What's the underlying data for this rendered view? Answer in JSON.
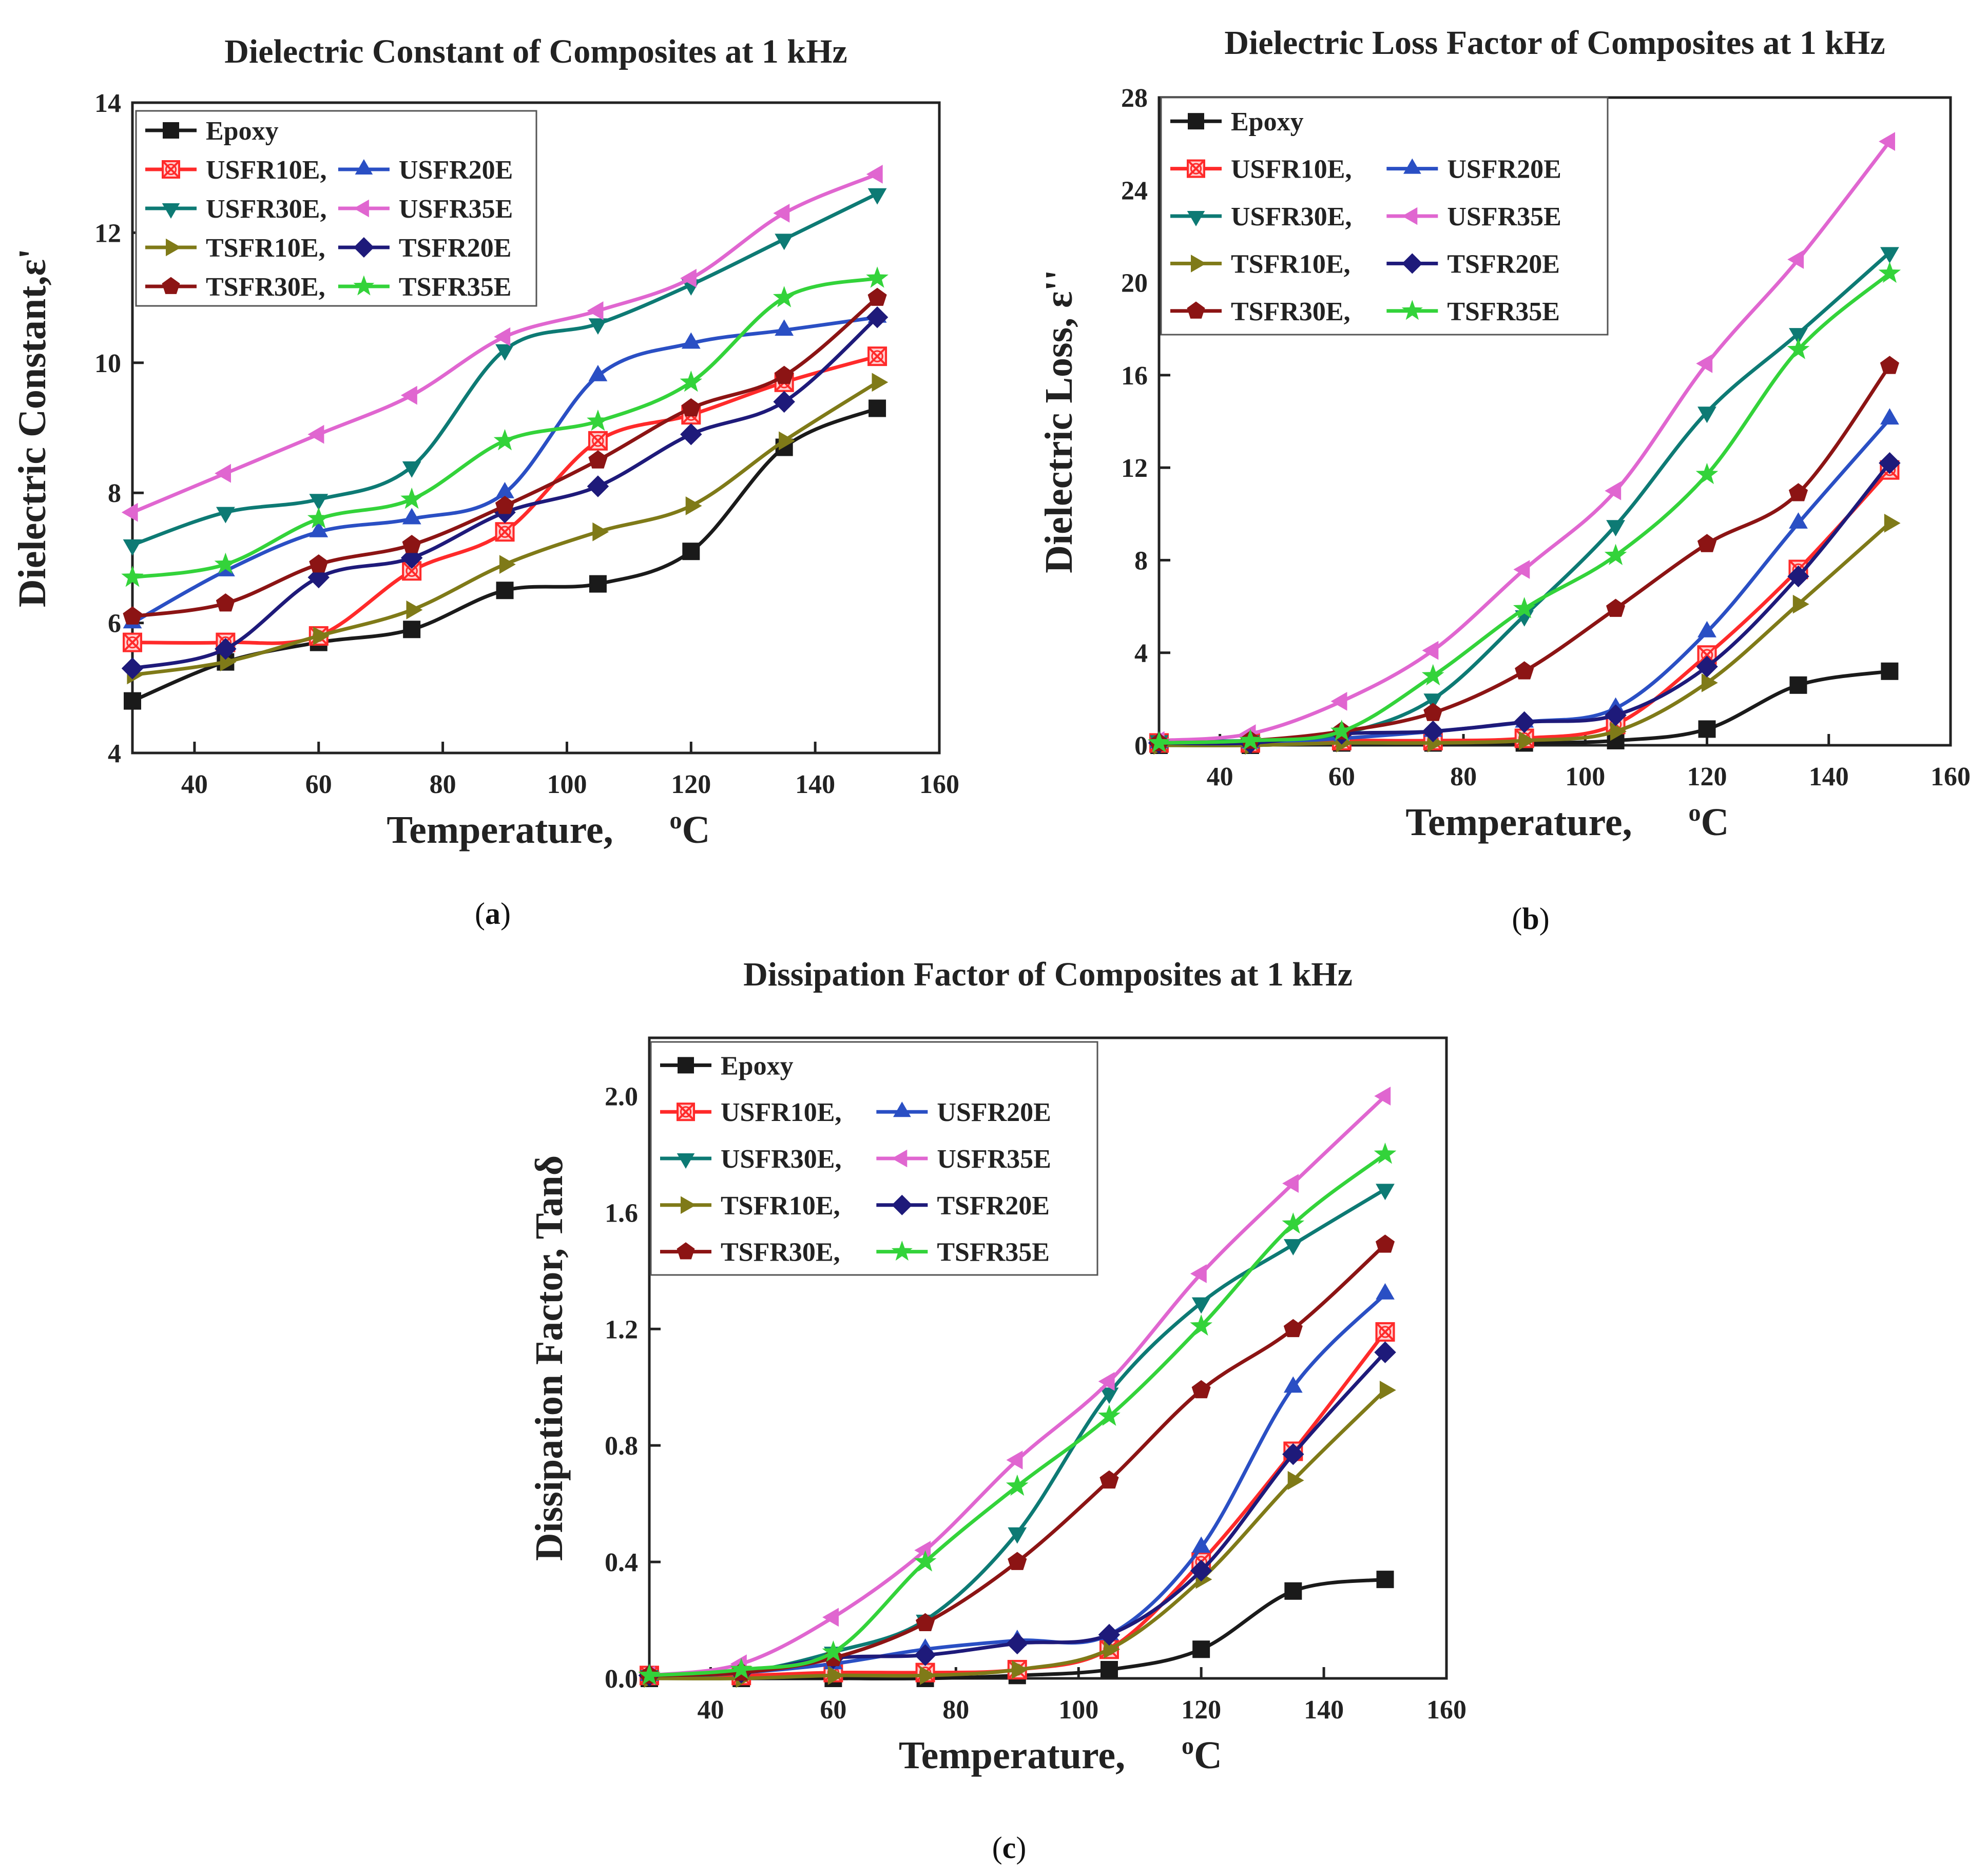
{
  "colors": {
    "Epoxy": "#1a1a1a",
    "USFR10E": "#ff2a2a",
    "USFR20E": "#2a4fc4",
    "USFR30E": "#0d7a74",
    "USFR35E": "#e066d0",
    "TSFR10E": "#7f7a18",
    "TSFR20E": "#1e1a7a",
    "TSFR30E": "#8c1414",
    "TSFR35E": "#33d33a"
  },
  "legend_items": [
    {
      "key": "Epoxy",
      "label": "Epoxy",
      "marker": "square"
    },
    {
      "key": "USFR10E",
      "label": "USFR10E,",
      "marker": "xsquare"
    },
    {
      "key": "USFR20E",
      "label": "USFR20E",
      "marker": "triangle-up"
    },
    {
      "key": "USFR30E",
      "label": "USFR30E,",
      "marker": "triangle-down"
    },
    {
      "key": "USFR35E",
      "label": "USFR35E",
      "marker": "triangle-left"
    },
    {
      "key": "TSFR10E",
      "label": "TSFR10E,",
      "marker": "triangle-right"
    },
    {
      "key": "TSFR20E",
      "label": "TSFR20E",
      "marker": "diamond"
    },
    {
      "key": "TSFR30E",
      "label": "TSFR30E,",
      "marker": "pentagon"
    },
    {
      "key": "TSFR35E",
      "label": "TSFR35E",
      "marker": "star"
    }
  ],
  "chart_data": [
    {
      "id": "a",
      "panel_label": "a",
      "type": "line",
      "title": "Dielectric Constant of  Composites at 1 kHz",
      "xlabel": "Temperature,",
      "xlabel_unit": "oC",
      "ylabel": "Dielectric Constant,ε'",
      "x": [
        30,
        45,
        60,
        75,
        90,
        105,
        120,
        135,
        150
      ],
      "xlim": [
        30,
        160
      ],
      "ylim": [
        4,
        14
      ],
      "xticks": [
        40,
        60,
        80,
        100,
        120,
        140,
        160
      ],
      "yticks": [
        4,
        6,
        8,
        10,
        12,
        14
      ],
      "ytick_labels": [
        "4",
        "6",
        "8",
        "10",
        "12",
        "14"
      ],
      "grid": false,
      "legend_position": "top-left",
      "series": [
        {
          "name": "Epoxy",
          "values": [
            4.8,
            5.4,
            5.7,
            5.9,
            6.5,
            6.6,
            7.1,
            8.7,
            9.3
          ]
        },
        {
          "name": "USFR10E",
          "values": [
            5.7,
            5.7,
            5.8,
            6.8,
            7.4,
            8.8,
            9.2,
            9.7,
            10.1
          ]
        },
        {
          "name": "USFR20E",
          "values": [
            6.0,
            6.8,
            7.4,
            7.6,
            8.0,
            9.8,
            10.3,
            10.5,
            10.7
          ]
        },
        {
          "name": "USFR30E",
          "values": [
            7.2,
            7.7,
            7.9,
            8.4,
            10.2,
            10.6,
            11.2,
            11.9,
            12.6
          ]
        },
        {
          "name": "USFR35E",
          "values": [
            7.7,
            8.3,
            8.9,
            9.5,
            10.4,
            10.8,
            11.3,
            12.3,
            12.9
          ]
        },
        {
          "name": "TSFR10E",
          "values": [
            5.2,
            5.4,
            5.8,
            6.2,
            6.9,
            7.4,
            7.8,
            8.8,
            9.7
          ]
        },
        {
          "name": "TSFR20E",
          "values": [
            5.3,
            5.6,
            6.7,
            7.0,
            7.7,
            8.1,
            8.9,
            9.4,
            10.7
          ]
        },
        {
          "name": "TSFR30E",
          "values": [
            6.1,
            6.3,
            6.9,
            7.2,
            7.8,
            8.5,
            9.3,
            9.8,
            11.0
          ]
        },
        {
          "name": "TSFR35E",
          "values": [
            6.7,
            6.9,
            7.6,
            7.9,
            8.8,
            9.1,
            9.7,
            11.0,
            11.3
          ]
        }
      ]
    },
    {
      "id": "b",
      "panel_label": "b",
      "type": "line",
      "title": "Dielectric Loss Factor of Composites at 1 kHz",
      "xlabel": "Temperature,",
      "xlabel_unit": "oC",
      "ylabel": "Dielectric Loss, ε''",
      "x": [
        30,
        45,
        60,
        75,
        90,
        105,
        120,
        135,
        150
      ],
      "xlim": [
        30,
        160
      ],
      "ylim": [
        0,
        28
      ],
      "xticks": [
        40,
        60,
        80,
        100,
        120,
        140,
        160
      ],
      "yticks": [
        0,
        4,
        8,
        12,
        16,
        20,
        24,
        28
      ],
      "ytick_labels": [
        "0",
        "4",
        "8",
        "12",
        "16",
        "20",
        "24",
        "28"
      ],
      "grid": false,
      "legend_position": "top-left",
      "series": [
        {
          "name": "Epoxy",
          "values": [
            0.0,
            0.0,
            0.1,
            0.1,
            0.1,
            0.2,
            0.7,
            2.6,
            3.2
          ]
        },
        {
          "name": "USFR10E",
          "values": [
            0.1,
            0.1,
            0.2,
            0.2,
            0.3,
            0.9,
            3.9,
            7.6,
            11.9
          ]
        },
        {
          "name": "USFR20E",
          "values": [
            0.1,
            0.1,
            0.3,
            0.6,
            1.0,
            1.6,
            4.9,
            9.6,
            14.1
          ]
        },
        {
          "name": "USFR30E",
          "values": [
            0.2,
            0.2,
            0.5,
            2.0,
            5.6,
            9.5,
            14.4,
            17.8,
            21.3
          ]
        },
        {
          "name": "USFR35E",
          "values": [
            0.2,
            0.5,
            1.9,
            4.1,
            7.6,
            11.0,
            16.5,
            21.0,
            26.1
          ]
        },
        {
          "name": "TSFR10E",
          "values": [
            0.0,
            0.0,
            0.1,
            0.1,
            0.2,
            0.6,
            2.7,
            6.1,
            9.6
          ]
        },
        {
          "name": "TSFR20E",
          "values": [
            0.1,
            0.1,
            0.5,
            0.6,
            1.0,
            1.3,
            3.4,
            7.3,
            12.2
          ]
        },
        {
          "name": "TSFR30E",
          "values": [
            0.1,
            0.2,
            0.6,
            1.4,
            3.2,
            5.9,
            8.7,
            10.9,
            16.4
          ]
        },
        {
          "name": "TSFR35E",
          "values": [
            0.1,
            0.2,
            0.6,
            3.0,
            5.9,
            8.2,
            11.7,
            17.1,
            20.4
          ]
        }
      ]
    },
    {
      "id": "c",
      "panel_label": "c",
      "type": "line",
      "title": "Dissipation Factor of Composites at 1 kHz",
      "xlabel": "Temperature,",
      "xlabel_unit": "oC",
      "ylabel": "Dissipation Factor, Tanδ",
      "x": [
        30,
        45,
        60,
        75,
        90,
        105,
        120,
        135,
        150
      ],
      "xlim": [
        30,
        160
      ],
      "ylim": [
        0,
        2.2
      ],
      "xticks": [
        40,
        60,
        80,
        100,
        120,
        140,
        160
      ],
      "yticks": [
        0,
        0.4,
        0.8,
        1.2,
        1.6,
        2.0
      ],
      "ytick_labels": [
        "0.0",
        "0.4",
        "0.8",
        "1.2",
        "1.6",
        "2.0"
      ],
      "grid": false,
      "legend_position": "top-left",
      "series": [
        {
          "name": "Epoxy",
          "values": [
            0.0,
            0.0,
            0.0,
            0.0,
            0.01,
            0.03,
            0.1,
            0.3,
            0.34
          ]
        },
        {
          "name": "USFR10E",
          "values": [
            0.01,
            0.01,
            0.02,
            0.02,
            0.03,
            0.1,
            0.4,
            0.78,
            1.19
          ]
        },
        {
          "name": "USFR20E",
          "values": [
            0.01,
            0.02,
            0.05,
            0.1,
            0.13,
            0.15,
            0.45,
            1.0,
            1.32
          ]
        },
        {
          "name": "USFR30E",
          "values": [
            0.01,
            0.02,
            0.09,
            0.2,
            0.5,
            0.98,
            1.29,
            1.49,
            1.68
          ]
        },
        {
          "name": "USFR35E",
          "values": [
            0.01,
            0.05,
            0.21,
            0.44,
            0.75,
            1.02,
            1.39,
            1.7,
            2.0
          ]
        },
        {
          "name": "TSFR10E",
          "values": [
            0.0,
            0.0,
            0.01,
            0.01,
            0.03,
            0.1,
            0.34,
            0.68,
            0.99
          ]
        },
        {
          "name": "TSFR20E",
          "values": [
            0.01,
            0.02,
            0.07,
            0.08,
            0.12,
            0.15,
            0.37,
            0.77,
            1.12
          ]
        },
        {
          "name": "TSFR30E",
          "values": [
            0.01,
            0.02,
            0.07,
            0.19,
            0.4,
            0.68,
            0.99,
            1.2,
            1.49
          ]
        },
        {
          "name": "TSFR35E",
          "values": [
            0.01,
            0.03,
            0.09,
            0.4,
            0.66,
            0.9,
            1.21,
            1.56,
            1.8
          ]
        }
      ]
    }
  ]
}
